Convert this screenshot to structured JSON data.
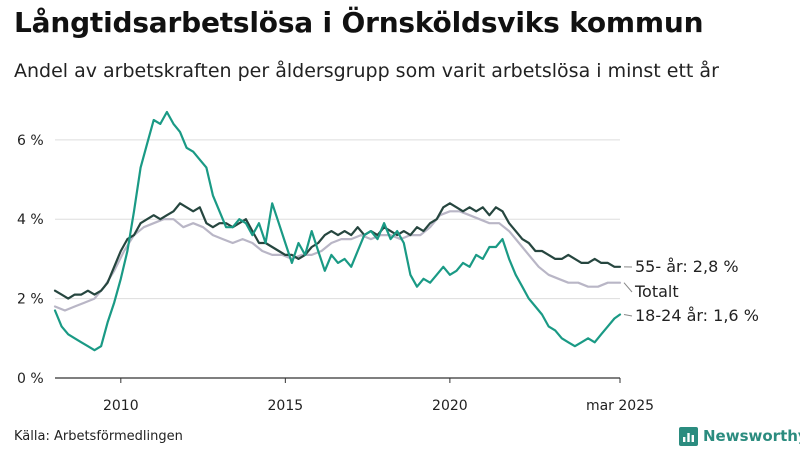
{
  "title": "Långtidsarbetslösa i Örnsköldsviks kommun",
  "subtitle": "Andel av arbetskraften per åldersgrupp som varit arbetslösa i minst ett år",
  "source": "Källa: Arbetsförmedlingen",
  "brand": {
    "name": "Newsworthy",
    "logo_icon": "newsworthy-chart-icon"
  },
  "colors": {
    "age55plus": "#26463f",
    "total": "#b9b6c6",
    "age18_24": "#1a9a85",
    "grid": "#dddddd",
    "axis": "#333333"
  },
  "chart_data": {
    "type": "line",
    "x_axis": {
      "range": [
        2008.0,
        2025.17
      ],
      "ticks": [
        {
          "value": 2010,
          "label": "2010"
        },
        {
          "value": 2015,
          "label": "2015"
        },
        {
          "value": 2020,
          "label": "2020"
        },
        {
          "value": 2025.17,
          "label": "mar 2025"
        }
      ]
    },
    "y_axis": {
      "range": [
        0,
        6.6
      ],
      "ticks": [
        {
          "value": 0,
          "label": "0 %"
        },
        {
          "value": 2,
          "label": "2 %"
        },
        {
          "value": 4,
          "label": "4 %"
        },
        {
          "value": 6,
          "label": "6 %"
        }
      ],
      "grid": true
    },
    "series": [
      {
        "name": "Totalt",
        "end_label": "Totalt",
        "color_key": "total",
        "points": [
          [
            2008.0,
            1.8
          ],
          [
            2008.3,
            1.7
          ],
          [
            2008.6,
            1.8
          ],
          [
            2008.9,
            1.9
          ],
          [
            2009.2,
            2.0
          ],
          [
            2009.5,
            2.3
          ],
          [
            2009.8,
            2.7
          ],
          [
            2010.1,
            3.2
          ],
          [
            2010.4,
            3.6
          ],
          [
            2010.7,
            3.8
          ],
          [
            2011.0,
            3.9
          ],
          [
            2011.3,
            4.0
          ],
          [
            2011.6,
            4.0
          ],
          [
            2011.9,
            3.8
          ],
          [
            2012.2,
            3.9
          ],
          [
            2012.5,
            3.8
          ],
          [
            2012.8,
            3.6
          ],
          [
            2013.1,
            3.5
          ],
          [
            2013.4,
            3.4
          ],
          [
            2013.7,
            3.5
          ],
          [
            2014.0,
            3.4
          ],
          [
            2014.3,
            3.2
          ],
          [
            2014.6,
            3.1
          ],
          [
            2014.9,
            3.1
          ],
          [
            2015.2,
            3.0
          ],
          [
            2015.5,
            3.1
          ],
          [
            2015.8,
            3.1
          ],
          [
            2016.1,
            3.2
          ],
          [
            2016.4,
            3.4
          ],
          [
            2016.7,
            3.5
          ],
          [
            2017.0,
            3.5
          ],
          [
            2017.3,
            3.6
          ],
          [
            2017.6,
            3.5
          ],
          [
            2017.9,
            3.6
          ],
          [
            2018.2,
            3.6
          ],
          [
            2018.5,
            3.5
          ],
          [
            2018.8,
            3.6
          ],
          [
            2019.1,
            3.6
          ],
          [
            2019.4,
            3.8
          ],
          [
            2019.7,
            4.1
          ],
          [
            2020.0,
            4.2
          ],
          [
            2020.3,
            4.2
          ],
          [
            2020.6,
            4.1
          ],
          [
            2020.9,
            4.0
          ],
          [
            2021.2,
            3.9
          ],
          [
            2021.5,
            3.9
          ],
          [
            2021.8,
            3.7
          ],
          [
            2022.1,
            3.4
          ],
          [
            2022.4,
            3.1
          ],
          [
            2022.7,
            2.8
          ],
          [
            2023.0,
            2.6
          ],
          [
            2023.3,
            2.5
          ],
          [
            2023.6,
            2.4
          ],
          [
            2023.9,
            2.4
          ],
          [
            2024.2,
            2.3
          ],
          [
            2024.5,
            2.3
          ],
          [
            2024.8,
            2.4
          ],
          [
            2025.17,
            2.4
          ]
        ]
      },
      {
        "name": "55- år",
        "end_label": "55- år: 2,8 %",
        "color_key": "age55plus",
        "points": [
          [
            2008.0,
            2.2
          ],
          [
            2008.2,
            2.1
          ],
          [
            2008.4,
            2.0
          ],
          [
            2008.6,
            2.1
          ],
          [
            2008.8,
            2.1
          ],
          [
            2009.0,
            2.2
          ],
          [
            2009.2,
            2.1
          ],
          [
            2009.4,
            2.2
          ],
          [
            2009.6,
            2.4
          ],
          [
            2009.8,
            2.8
          ],
          [
            2010.0,
            3.2
          ],
          [
            2010.2,
            3.5
          ],
          [
            2010.4,
            3.6
          ],
          [
            2010.6,
            3.9
          ],
          [
            2010.8,
            4.0
          ],
          [
            2011.0,
            4.1
          ],
          [
            2011.2,
            4.0
          ],
          [
            2011.4,
            4.1
          ],
          [
            2011.6,
            4.2
          ],
          [
            2011.8,
            4.4
          ],
          [
            2012.0,
            4.3
          ],
          [
            2012.2,
            4.2
          ],
          [
            2012.4,
            4.3
          ],
          [
            2012.6,
            3.9
          ],
          [
            2012.8,
            3.8
          ],
          [
            2013.0,
            3.9
          ],
          [
            2013.2,
            3.9
          ],
          [
            2013.4,
            3.8
          ],
          [
            2013.6,
            3.9
          ],
          [
            2013.8,
            4.0
          ],
          [
            2014.0,
            3.7
          ],
          [
            2014.2,
            3.4
          ],
          [
            2014.4,
            3.4
          ],
          [
            2014.6,
            3.3
          ],
          [
            2014.8,
            3.2
          ],
          [
            2015.0,
            3.1
          ],
          [
            2015.2,
            3.1
          ],
          [
            2015.4,
            3.0
          ],
          [
            2015.6,
            3.1
          ],
          [
            2015.8,
            3.3
          ],
          [
            2016.0,
            3.4
          ],
          [
            2016.2,
            3.6
          ],
          [
            2016.4,
            3.7
          ],
          [
            2016.6,
            3.6
          ],
          [
            2016.8,
            3.7
          ],
          [
            2017.0,
            3.6
          ],
          [
            2017.2,
            3.8
          ],
          [
            2017.4,
            3.6
          ],
          [
            2017.6,
            3.7
          ],
          [
            2017.8,
            3.6
          ],
          [
            2018.0,
            3.8
          ],
          [
            2018.2,
            3.7
          ],
          [
            2018.4,
            3.6
          ],
          [
            2018.6,
            3.7
          ],
          [
            2018.8,
            3.6
          ],
          [
            2019.0,
            3.8
          ],
          [
            2019.2,
            3.7
          ],
          [
            2019.4,
            3.9
          ],
          [
            2019.6,
            4.0
          ],
          [
            2019.8,
            4.3
          ],
          [
            2020.0,
            4.4
          ],
          [
            2020.2,
            4.3
          ],
          [
            2020.4,
            4.2
          ],
          [
            2020.6,
            4.3
          ],
          [
            2020.8,
            4.2
          ],
          [
            2021.0,
            4.3
          ],
          [
            2021.2,
            4.1
          ],
          [
            2021.4,
            4.3
          ],
          [
            2021.6,
            4.2
          ],
          [
            2021.8,
            3.9
          ],
          [
            2022.0,
            3.7
          ],
          [
            2022.2,
            3.5
          ],
          [
            2022.4,
            3.4
          ],
          [
            2022.6,
            3.2
          ],
          [
            2022.8,
            3.2
          ],
          [
            2023.0,
            3.1
          ],
          [
            2023.2,
            3.0
          ],
          [
            2023.4,
            3.0
          ],
          [
            2023.6,
            3.1
          ],
          [
            2023.8,
            3.0
          ],
          [
            2024.0,
            2.9
          ],
          [
            2024.2,
            2.9
          ],
          [
            2024.4,
            3.0
          ],
          [
            2024.6,
            2.9
          ],
          [
            2024.8,
            2.9
          ],
          [
            2025.0,
            2.8
          ],
          [
            2025.17,
            2.8
          ]
        ]
      },
      {
        "name": "18-24 år",
        "end_label": "18-24 år: 1,6 %",
        "color_key": "age18_24",
        "points": [
          [
            2008.0,
            1.7
          ],
          [
            2008.2,
            1.3
          ],
          [
            2008.4,
            1.1
          ],
          [
            2008.6,
            1.0
          ],
          [
            2008.8,
            0.9
          ],
          [
            2009.0,
            0.8
          ],
          [
            2009.2,
            0.7
          ],
          [
            2009.4,
            0.8
          ],
          [
            2009.6,
            1.4
          ],
          [
            2009.8,
            1.9
          ],
          [
            2010.0,
            2.5
          ],
          [
            2010.2,
            3.2
          ],
          [
            2010.4,
            4.2
          ],
          [
            2010.6,
            5.3
          ],
          [
            2010.8,
            5.9
          ],
          [
            2011.0,
            6.5
          ],
          [
            2011.2,
            6.4
          ],
          [
            2011.4,
            6.7
          ],
          [
            2011.6,
            6.4
          ],
          [
            2011.8,
            6.2
          ],
          [
            2012.0,
            5.8
          ],
          [
            2012.2,
            5.7
          ],
          [
            2012.4,
            5.5
          ],
          [
            2012.6,
            5.3
          ],
          [
            2012.8,
            4.6
          ],
          [
            2013.0,
            4.2
          ],
          [
            2013.2,
            3.8
          ],
          [
            2013.4,
            3.8
          ],
          [
            2013.6,
            4.0
          ],
          [
            2013.8,
            3.9
          ],
          [
            2014.0,
            3.6
          ],
          [
            2014.2,
            3.9
          ],
          [
            2014.4,
            3.4
          ],
          [
            2014.6,
            4.4
          ],
          [
            2014.8,
            3.9
          ],
          [
            2015.0,
            3.4
          ],
          [
            2015.2,
            2.9
          ],
          [
            2015.4,
            3.4
          ],
          [
            2015.6,
            3.1
          ],
          [
            2015.8,
            3.7
          ],
          [
            2016.0,
            3.2
          ],
          [
            2016.2,
            2.7
          ],
          [
            2016.4,
            3.1
          ],
          [
            2016.6,
            2.9
          ],
          [
            2016.8,
            3.0
          ],
          [
            2017.0,
            2.8
          ],
          [
            2017.2,
            3.2
          ],
          [
            2017.4,
            3.6
          ],
          [
            2017.6,
            3.7
          ],
          [
            2017.8,
            3.5
          ],
          [
            2018.0,
            3.9
          ],
          [
            2018.2,
            3.5
          ],
          [
            2018.4,
            3.7
          ],
          [
            2018.6,
            3.4
          ],
          [
            2018.8,
            2.6
          ],
          [
            2019.0,
            2.3
          ],
          [
            2019.2,
            2.5
          ],
          [
            2019.4,
            2.4
          ],
          [
            2019.6,
            2.6
          ],
          [
            2019.8,
            2.8
          ],
          [
            2020.0,
            2.6
          ],
          [
            2020.2,
            2.7
          ],
          [
            2020.4,
            2.9
          ],
          [
            2020.6,
            2.8
          ],
          [
            2020.8,
            3.1
          ],
          [
            2021.0,
            3.0
          ],
          [
            2021.2,
            3.3
          ],
          [
            2021.4,
            3.3
          ],
          [
            2021.6,
            3.5
          ],
          [
            2021.8,
            3.0
          ],
          [
            2022.0,
            2.6
          ],
          [
            2022.2,
            2.3
          ],
          [
            2022.4,
            2.0
          ],
          [
            2022.6,
            1.8
          ],
          [
            2022.8,
            1.6
          ],
          [
            2023.0,
            1.3
          ],
          [
            2023.2,
            1.2
          ],
          [
            2023.4,
            1.0
          ],
          [
            2023.6,
            0.9
          ],
          [
            2023.8,
            0.8
          ],
          [
            2024.0,
            0.9
          ],
          [
            2024.2,
            1.0
          ],
          [
            2024.4,
            0.9
          ],
          [
            2024.6,
            1.1
          ],
          [
            2024.8,
            1.3
          ],
          [
            2025.0,
            1.5
          ],
          [
            2025.17,
            1.6
          ]
        ]
      }
    ]
  }
}
